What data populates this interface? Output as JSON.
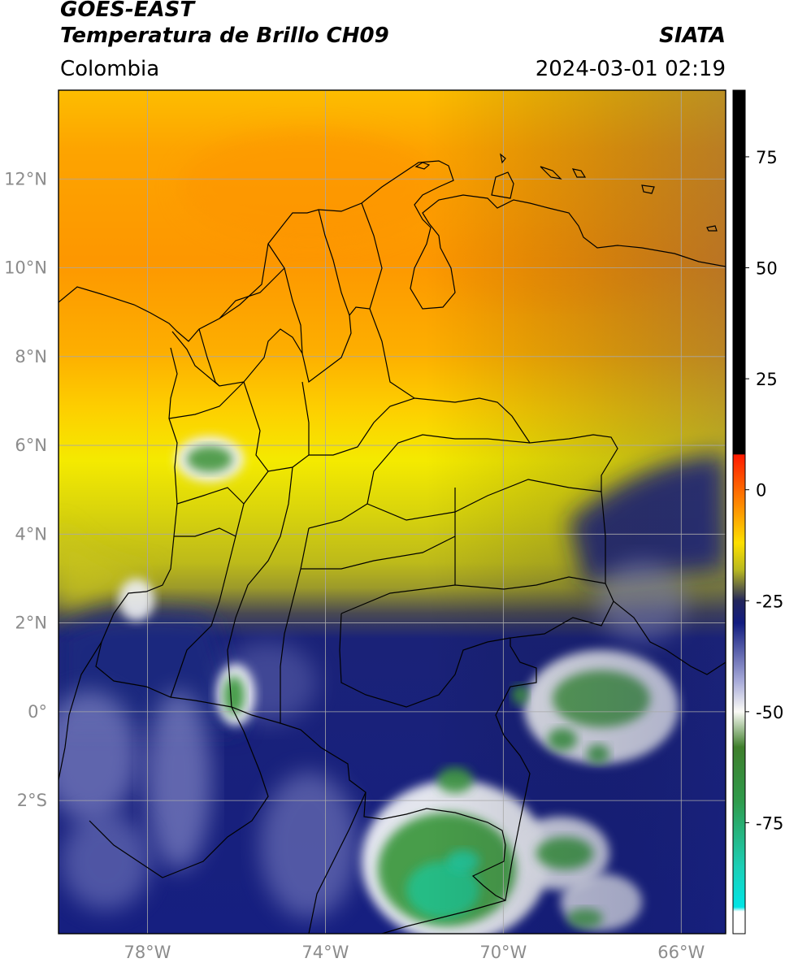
{
  "header": {
    "satellite": "GOES-EAST",
    "product": "Temperatura de Brillo CH09",
    "agency": "SIATA",
    "region": "Colombia",
    "timestamp": "2024-03-01 02:19"
  },
  "map": {
    "lon_range": [
      -80.0,
      -65.0
    ],
    "lat_range": [
      -5.0,
      14.0
    ],
    "lon_ticks": [
      {
        "value": -78,
        "label": "78°W"
      },
      {
        "value": -74,
        "label": "74°W"
      },
      {
        "value": -70,
        "label": "70°W"
      },
      {
        "value": -66,
        "label": "66°W"
      }
    ],
    "lat_ticks": [
      {
        "value": 12,
        "label": "12°N"
      },
      {
        "value": 10,
        "label": "10°N"
      },
      {
        "value": 8,
        "label": "8°N"
      },
      {
        "value": 6,
        "label": "6°N"
      },
      {
        "value": 4,
        "label": "4°N"
      },
      {
        "value": 2,
        "label": "2°N"
      },
      {
        "value": 0,
        "label": "0°"
      },
      {
        "value": -2,
        "label": "2°S"
      }
    ],
    "gridlines": true,
    "colors": {
      "warm_orange": "#fd9800",
      "yellow": "#fbe200",
      "olive": "#b8b81e",
      "navy": "#16217e",
      "white": "#f4f6f2",
      "green": "#3e9a3e",
      "teal": "#23c08a",
      "land_border": "#000000",
      "grid": "#a8a8a8",
      "tick_label": "#8c8c8c"
    }
  },
  "colorbar": {
    "range": [
      -100,
      90
    ],
    "ticks": [
      {
        "value": 75,
        "label": "75"
      },
      {
        "value": 50,
        "label": "50"
      },
      {
        "value": 25,
        "label": "25"
      },
      {
        "value": 0,
        "label": "0"
      },
      {
        "value": -25,
        "label": "-25"
      },
      {
        "value": -50,
        "label": "-50"
      },
      {
        "value": -75,
        "label": "-75"
      }
    ],
    "stops": [
      {
        "value": 90,
        "color": "#000000"
      },
      {
        "value": 8,
        "color": "#000000"
      },
      {
        "value": 7.9,
        "color": "#ff1a00"
      },
      {
        "value": -5,
        "color": "#fd9a00"
      },
      {
        "value": -12,
        "color": "#fde000"
      },
      {
        "value": -18,
        "color": "#b9b91f"
      },
      {
        "value": -25,
        "color": "#23265c"
      },
      {
        "value": -30,
        "color": "#121c80"
      },
      {
        "value": -43,
        "color": "#a6a9d8"
      },
      {
        "value": -50,
        "color": "#fbfbf6"
      },
      {
        "value": -58,
        "color": "#3f7f2c"
      },
      {
        "value": -70,
        "color": "#2f9b4b"
      },
      {
        "value": -85,
        "color": "#1ccfb6"
      },
      {
        "value": -94,
        "color": "#00e5e5"
      },
      {
        "value": -95,
        "color": "#ffffff"
      },
      {
        "value": -100,
        "color": "#ffffff"
      }
    ]
  }
}
